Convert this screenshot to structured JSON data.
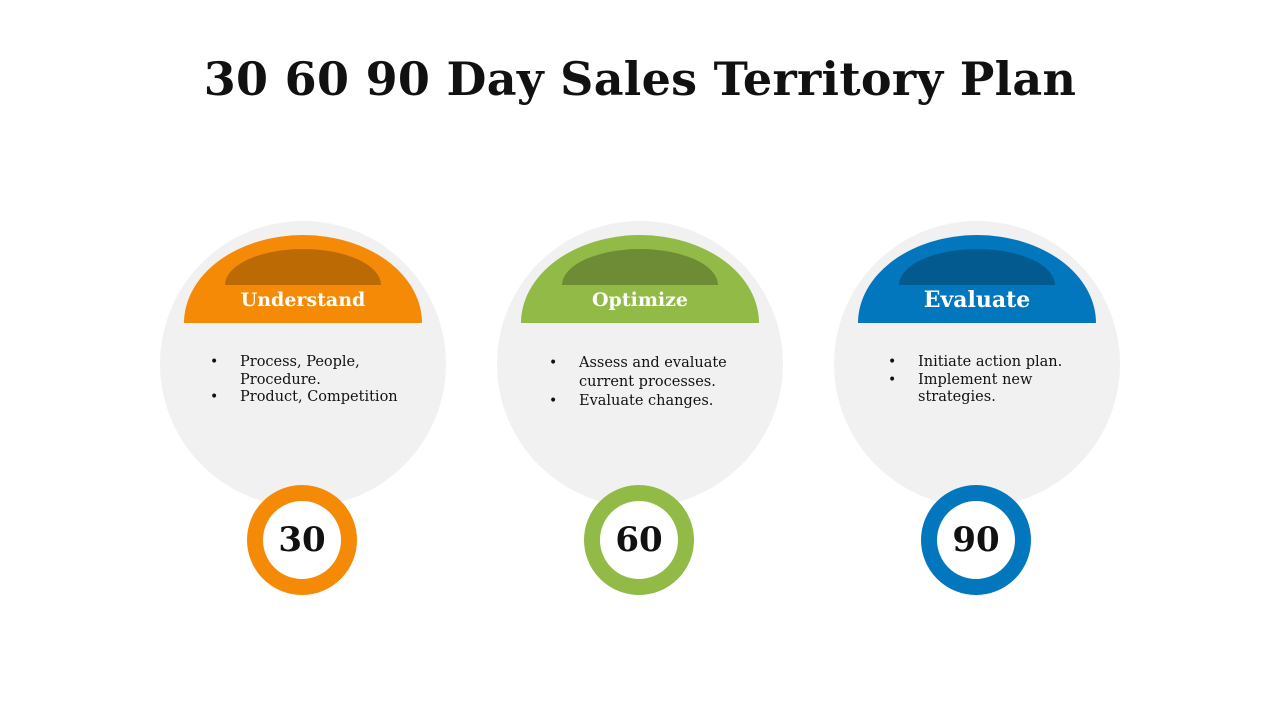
{
  "title": "30 60 90 Day Sales Territory Plan",
  "phases": [
    {
      "label": "Understand",
      "number": "30",
      "color": "#F58A07",
      "inner_color": "#BC6A04",
      "bullets": [
        "Process, People, Procedure.",
        "Product, Competition"
      ]
    },
    {
      "label": "Optimize",
      "number": "60",
      "color": "#92BA46",
      "inner_color": "#6E8C35",
      "bullets": [
        "Assess and evaluate current processes.",
        "Evaluate changes."
      ]
    },
    {
      "label": "Evaluate",
      "number": "90",
      "color": "#0277BD",
      "inner_color": "#025A8E",
      "bullets": [
        "Initiate action plan.",
        "Implement new strategies."
      ]
    }
  ]
}
